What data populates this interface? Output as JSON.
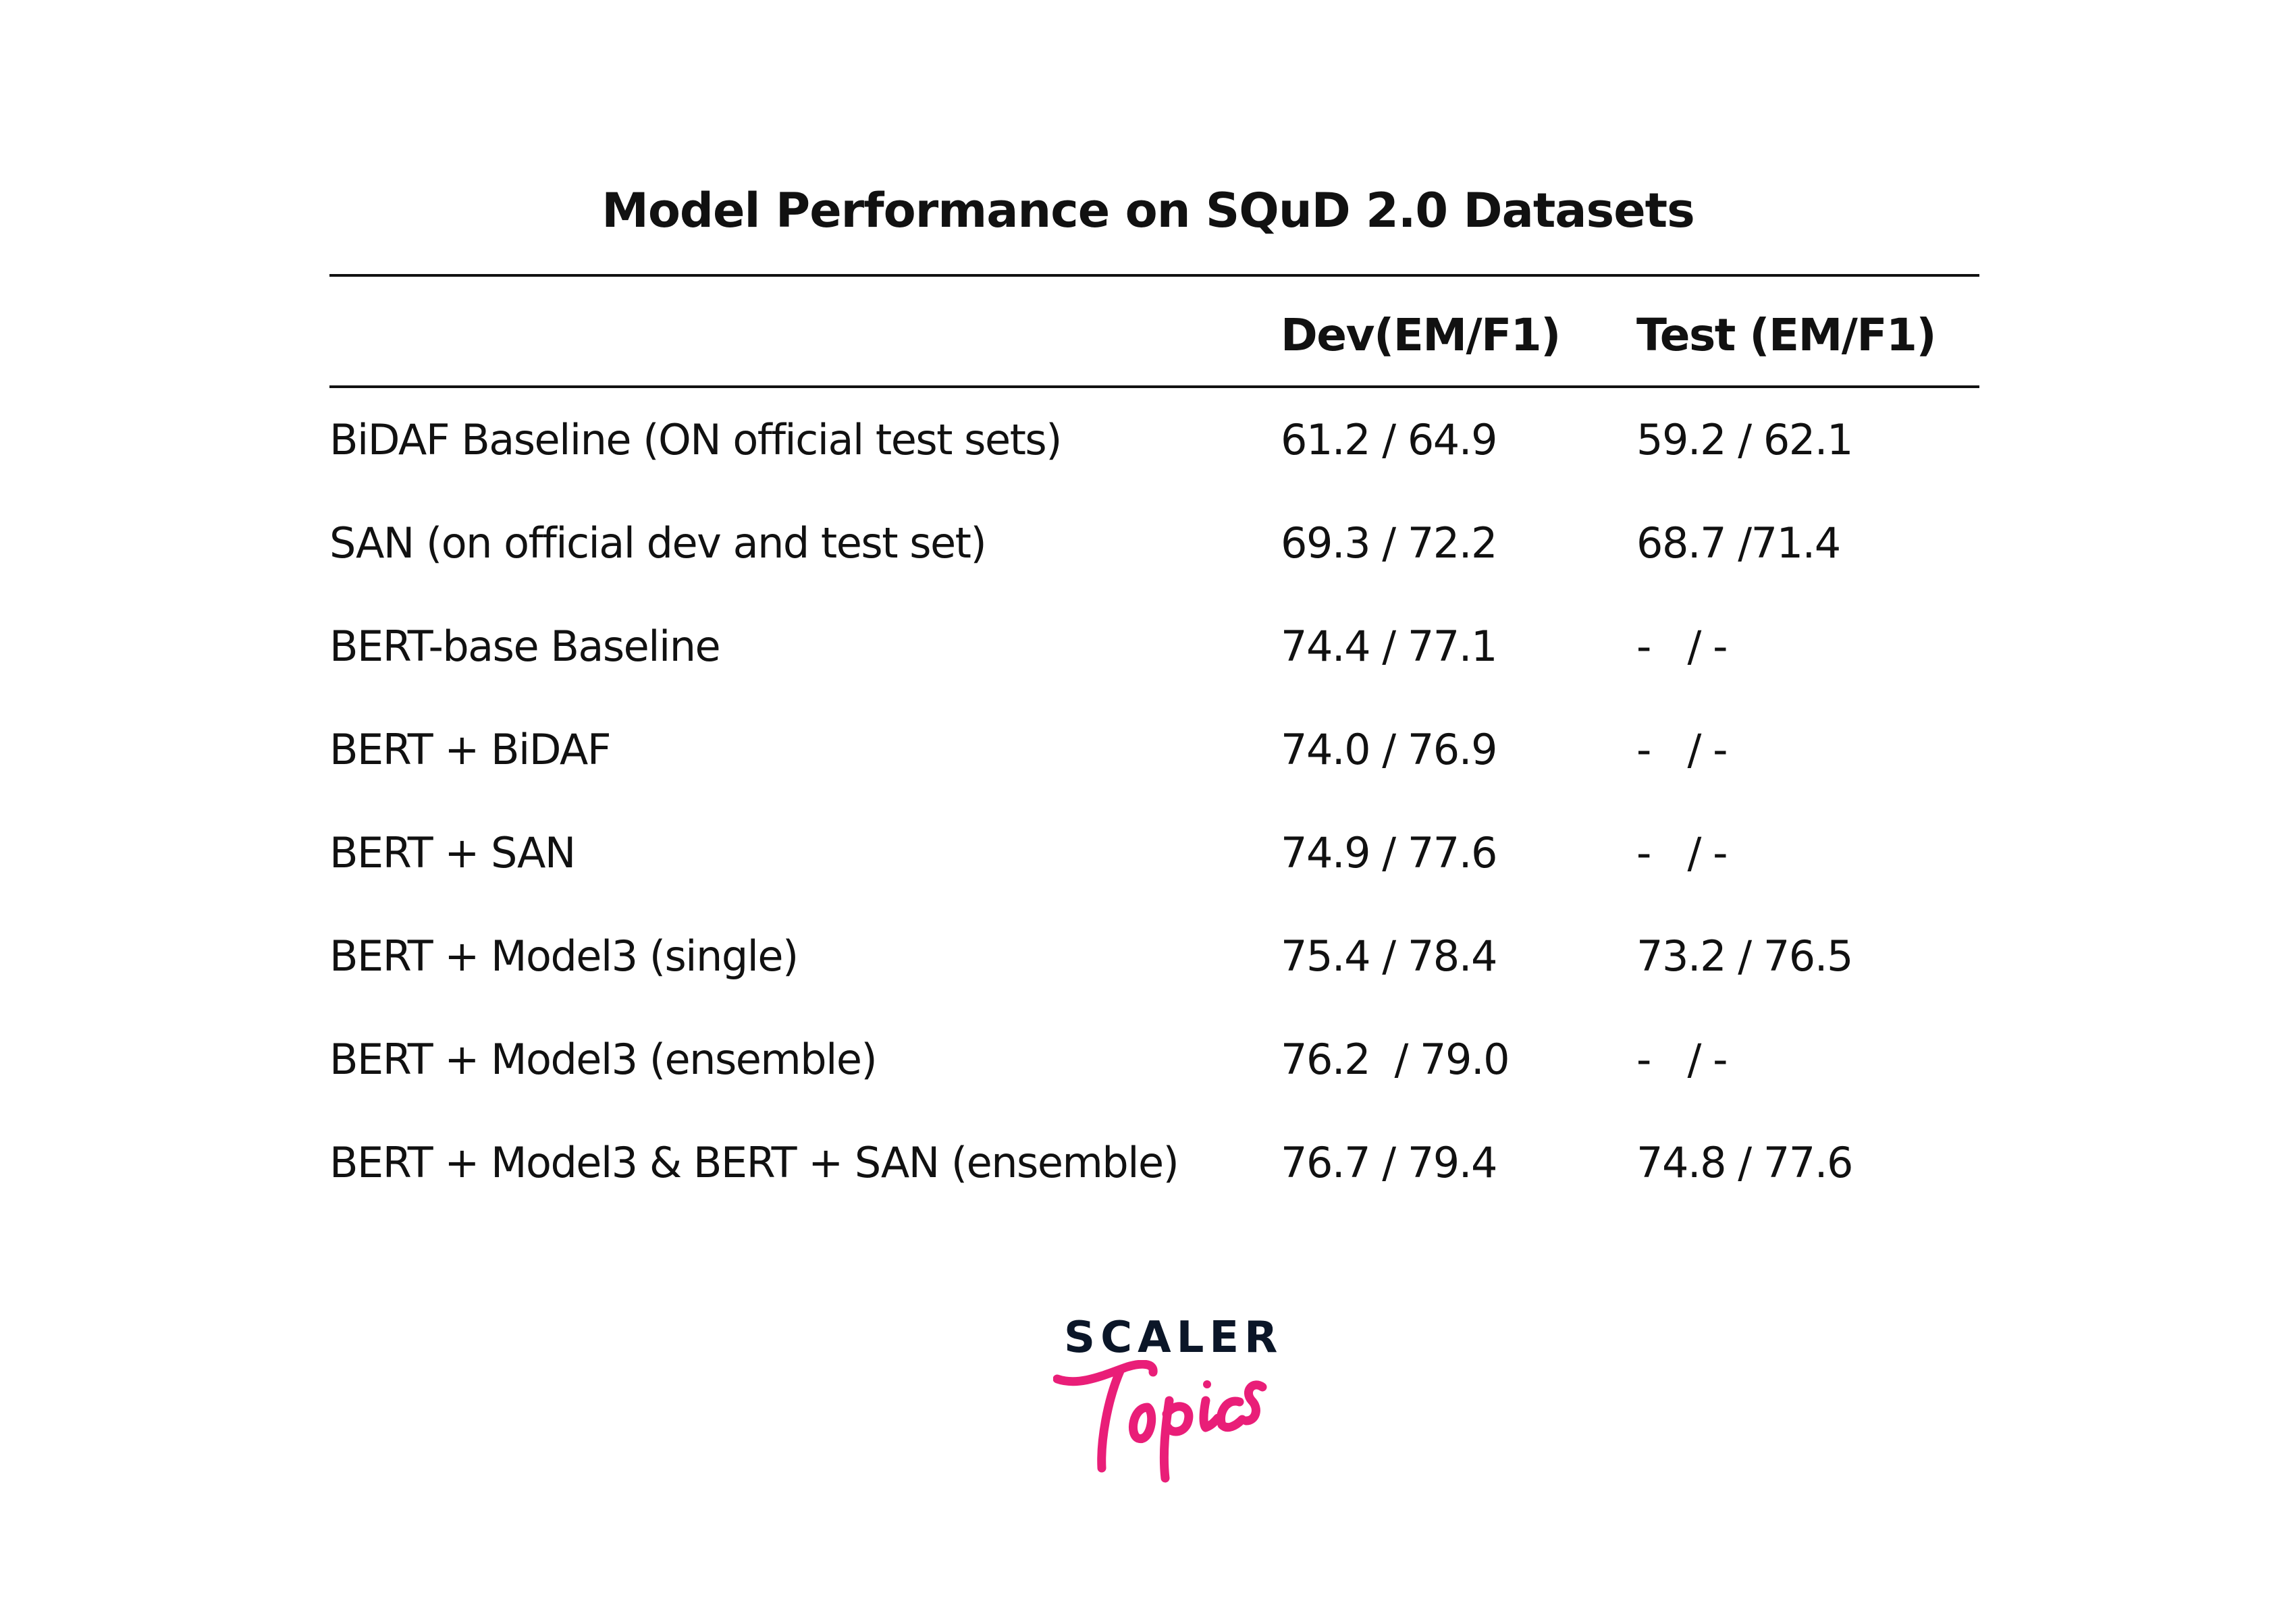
{
  "title": "Model Performance on SQuD 2.0 Datasets",
  "table": {
    "headers": [
      "",
      "Dev(EM/F1)",
      "Test (EM/F1)"
    ],
    "rows": [
      [
        "BiDAF Baseline (ON official test sets)",
        "61.2 / 64.9",
        "59.2 / 62.1"
      ],
      [
        "SAN (on official dev and test set)",
        "69.3 / 72.2",
        "68.7 /71.4"
      ],
      [
        "BERT-base Baseline",
        "74.4 / 77.1",
        "-   / -"
      ],
      [
        "BERT + BiDAF",
        "74.0 / 76.9",
        "-   / -"
      ],
      [
        "BERT + SAN",
        "74.9 / 77.6",
        "-   / -"
      ],
      [
        "BERT + Model3 (single)",
        "75.4 / 78.4",
        "73.2 / 76.5"
      ],
      [
        "BERT + Model3 (ensemble)",
        "76.2  / 79.0",
        "-   / -"
      ],
      [
        "BERT + Model3 & BERT + SAN (ensemble)",
        "76.7 / 79.4",
        "74.8 / 77.6"
      ]
    ]
  },
  "logo": {
    "brand": "SCALER",
    "sub": "Topics",
    "brand_color": "#0b1628",
    "accent_color": "#e91e78"
  }
}
